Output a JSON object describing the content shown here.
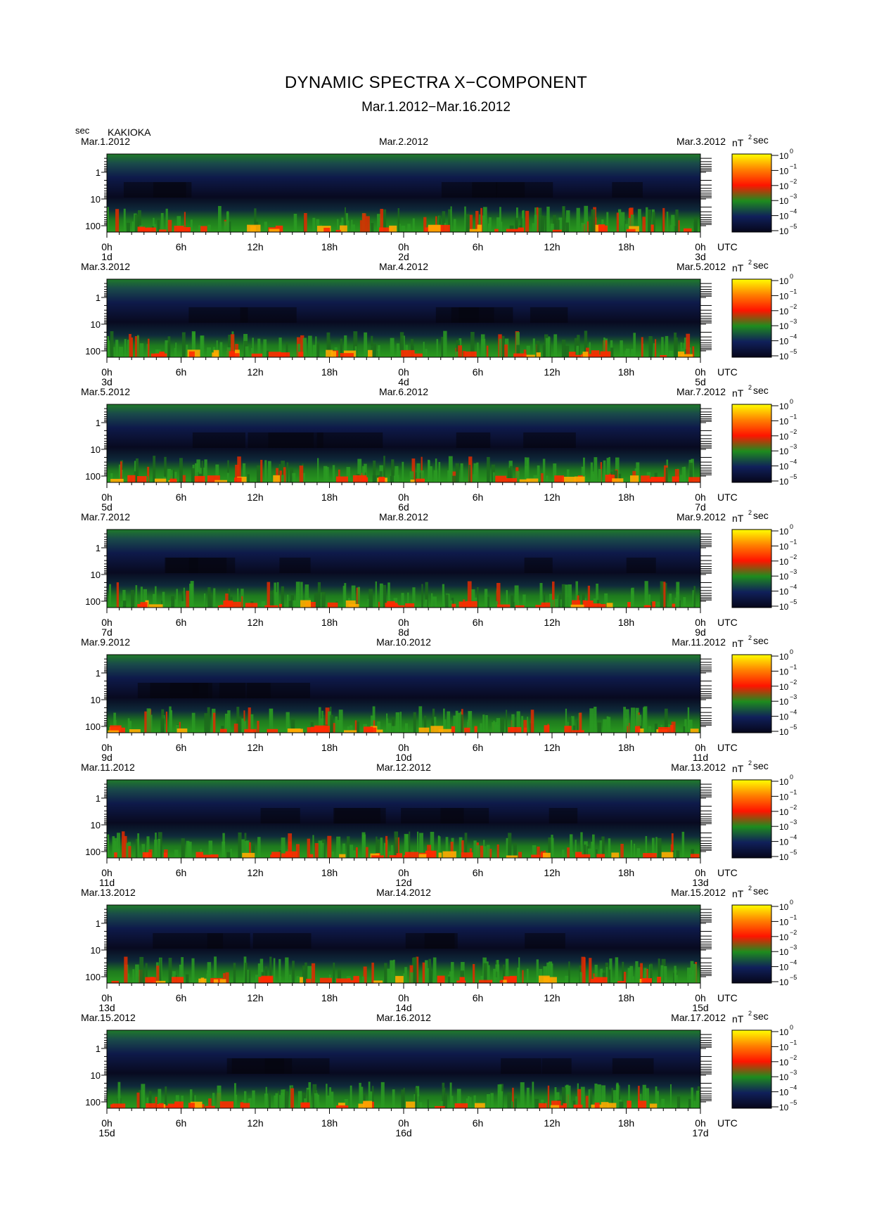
{
  "title": "DYNAMIC SPECTRA X−COMPONENT",
  "subtitle": "Mar.1.2012−Mar.16.2012",
  "station": "KAKIOKA",
  "ylabel": "sec",
  "utc_label": "UTC",
  "colorbar_unit": "nT",
  "colorbar_unit_sup": "2",
  "colorbar_unit_suffix": "sec",
  "colorbar_ticks": [
    "10",
    "10",
    "10",
    "10",
    "10",
    "10"
  ],
  "colorbar_exps": [
    "0",
    "−1",
    "−2",
    "−3",
    "−4",
    "−5"
  ],
  "colors": {
    "low": "#0a0a1e",
    "mid": "#1e8c1e",
    "high": "#ff2a00",
    "max": "#ffff00"
  },
  "chart_data": {
    "type": "heatmap",
    "y_axis": {
      "label": "sec",
      "scale": "log",
      "ticks": [
        "1",
        "10",
        "100"
      ]
    },
    "x_ticks": [
      "0h",
      "6h",
      "12h",
      "18h",
      "0h",
      "6h",
      "12h",
      "18h",
      "0h"
    ],
    "colorbar_range_exponents": [
      -5,
      0
    ],
    "panels": [
      {
        "date_left": "Mar.1.2012",
        "date_mid": "Mar.2.2012",
        "date_right": "Mar.3.2012",
        "day_left": "1d",
        "day_mid": "2d",
        "day_right": "3d"
      },
      {
        "date_left": "Mar.3.2012",
        "date_mid": "Mar.4.2012",
        "date_right": "Mar.5.2012",
        "day_left": "3d",
        "day_mid": "4d",
        "day_right": "5d"
      },
      {
        "date_left": "Mar.5.2012",
        "date_mid": "Mar.6.2012",
        "date_right": "Mar.7.2012",
        "day_left": "5d",
        "day_mid": "6d",
        "day_right": "7d"
      },
      {
        "date_left": "Mar.7.2012",
        "date_mid": "Mar.8.2012",
        "date_right": "Mar.9.2012",
        "day_left": "7d",
        "day_mid": "8d",
        "day_right": "9d"
      },
      {
        "date_left": "Mar.9.2012",
        "date_mid": "Mar.10.2012",
        "date_right": "Mar.11.2012",
        "day_left": "9d",
        "day_mid": "10d",
        "day_right": "11d"
      },
      {
        "date_left": "Mar.11.2012",
        "date_mid": "Mar.12.2012",
        "date_right": "Mar.13.2012",
        "day_left": "11d",
        "day_mid": "12d",
        "day_right": "13d"
      },
      {
        "date_left": "Mar.13.2012",
        "date_mid": "Mar.14.2012",
        "date_right": "Mar.15.2012",
        "day_left": "13d",
        "day_mid": "14d",
        "day_right": "15d"
      },
      {
        "date_left": "Mar.15.2012",
        "date_mid": "Mar.16.2012",
        "date_right": "Mar.17.2012",
        "day_left": "15d",
        "day_mid": "16d",
        "day_right": "17d"
      }
    ]
  }
}
